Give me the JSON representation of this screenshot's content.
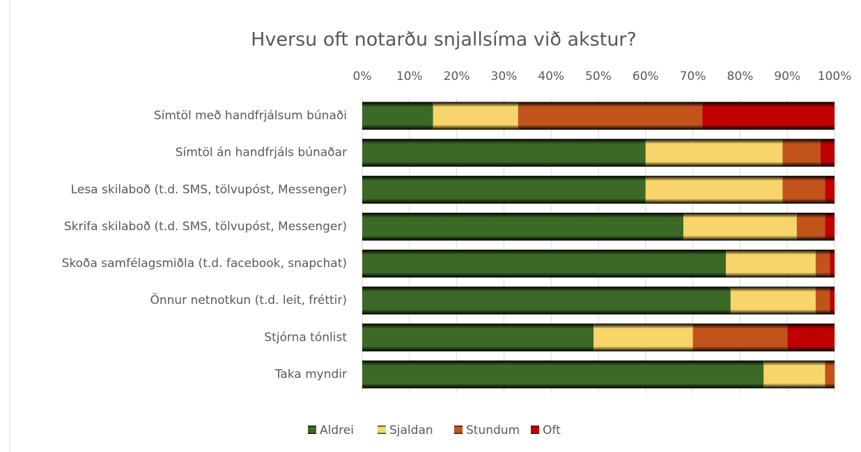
{
  "chart_data": {
    "type": "stacked_bar_horizontal",
    "title": "Hversu oft notarðu snjallsíma við akstur?",
    "categories": [
      "Símtöl með handfrjálsum búnaði",
      "Símtöl án handfrjáls búnaðar",
      "Lesa skilaboð (t.d. SMS, tölvupóst, Messenger)",
      "Skrifa skilaboð (t.d. SMS, tölvupóst, Messenger)",
      "Skoða samfélagsmiðla (t.d. facebook, snapchat)",
      "Önnur netnotkun (t.d. leit, fréttir)",
      "Stjórna tónlist",
      "Taka myndir"
    ],
    "series": [
      {
        "name": "Aldrei",
        "color": "#3c6a26",
        "values": [
          15,
          60,
          60,
          68,
          77,
          78,
          49,
          85
        ]
      },
      {
        "name": "Sjaldan",
        "color": "#f7d56a",
        "values": [
          18,
          29,
          29,
          24,
          19,
          18,
          21,
          13
        ]
      },
      {
        "name": "Stundum",
        "color": "#c2541b",
        "values": [
          39,
          8,
          9,
          6,
          3,
          3,
          20,
          2
        ]
      },
      {
        "name": "Oft",
        "color": "#c00000",
        "values": [
          28,
          3,
          2,
          2,
          1,
          1,
          10,
          0
        ]
      }
    ],
    "xlim": [
      0,
      100
    ],
    "xticks": [
      {
        "value": 0,
        "label": "0%"
      },
      {
        "value": 10,
        "label": "10%"
      },
      {
        "value": 20,
        "label": "20%"
      },
      {
        "value": 30,
        "label": "30%"
      },
      {
        "value": 40,
        "label": "40%"
      },
      {
        "value": 50,
        "label": "50%"
      },
      {
        "value": 60,
        "label": "60%"
      },
      {
        "value": 70,
        "label": "70%"
      },
      {
        "value": 80,
        "label": "80%"
      },
      {
        "value": 90,
        "label": "90%"
      },
      {
        "value": 100,
        "label": "100%"
      }
    ],
    "grid": true,
    "legend": "bottom"
  }
}
